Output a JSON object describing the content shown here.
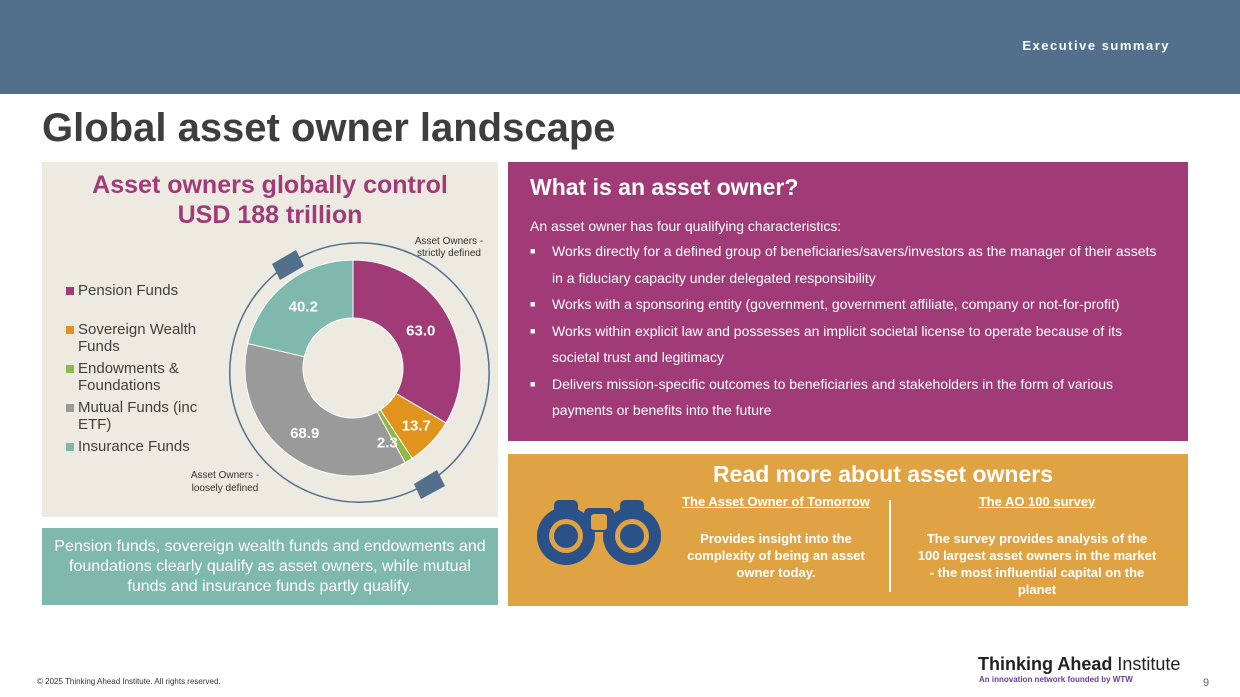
{
  "header": {
    "section_label": "Executive summary"
  },
  "page": {
    "title": "Global asset owner landscape"
  },
  "chart_panel": {
    "title_line1": "Asset owners globally control",
    "title_line2": "USD 188 trillion",
    "annotation_strict": [
      "Asset Owners -",
      "strictly defined"
    ],
    "annotation_loose": [
      "Asset Owners -",
      "loosely defined"
    ]
  },
  "chart_data": {
    "type": "pie",
    "subtype": "donut",
    "title": "Asset owners globally control USD 188 trillion",
    "categories": [
      "Pension Funds",
      "Sovereign Wealth Funds",
      "Endowments & Foundations",
      "Mutual Funds (inc ETF)",
      "Insurance Funds"
    ],
    "values": [
      63.0,
      13.7,
      2.3,
      68.9,
      40.2
    ],
    "labels": [
      "63.0",
      "13.7",
      "2.3",
      "68.9",
      "40.2"
    ],
    "colors": [
      "#a03b78",
      "#e0941e",
      "#8db84a",
      "#9a9a9a",
      "#7fb8ad"
    ],
    "legend_placement": "left",
    "legend_lines": [
      [
        "Pension Funds"
      ],
      [
        "Sovereign Wealth",
        "Funds"
      ],
      [
        "Endowments &",
        "Foundations"
      ],
      [
        "Mutual Funds (inc",
        "ETF)"
      ],
      [
        "Insurance Funds"
      ]
    ]
  },
  "note": {
    "text": "Pension funds, sovereign wealth funds and endowments and foundations clearly qualify as asset owners, while mutual funds and insurance funds partly qualify."
  },
  "definition": {
    "title": "What is an asset owner?",
    "intro": "An asset owner has four qualifying characteristics:",
    "bullet_glyph": "■",
    "items": [
      "Works directly for a defined group of beneficiaries/savers/investors as the manager of their assets in a fiduciary capacity under delegated responsibility",
      "Works with a sponsoring entity (government, government affiliate, company or not-for-profit)",
      "Works within explicit law and possesses an implicit societal license to operate because of its societal trust and legitimacy",
      "Delivers mission-specific outcomes to beneficiaries and stakeholders in the form of various payments or benefits into the future"
    ]
  },
  "read_more": {
    "title": "Read more about asset owners",
    "icon": "binoculars-icon",
    "links": [
      {
        "title": "The Asset Owner of Tomorrow",
        "description": "Provides insight into the complexity of being an asset owner today."
      },
      {
        "title": "The AO 100 survey",
        "description": "The survey provides analysis of the 100 largest asset owners in the market - the most influential capital on the planet"
      }
    ]
  },
  "footer": {
    "copyright": "© 2025 Thinking Ahead Institute. All rights reserved.",
    "brand_bold": "Thinking Ahead",
    "brand_regular": "Institute",
    "tagline": "An innovation network founded by WTW",
    "page_number": "9"
  },
  "colors": {
    "header": "#52708c",
    "magenta": "#a03b78",
    "orange": "#e0a343",
    "teal": "#7fb8ad",
    "panel_bg": "#eceae1",
    "icon_blue": "#2a5288"
  }
}
